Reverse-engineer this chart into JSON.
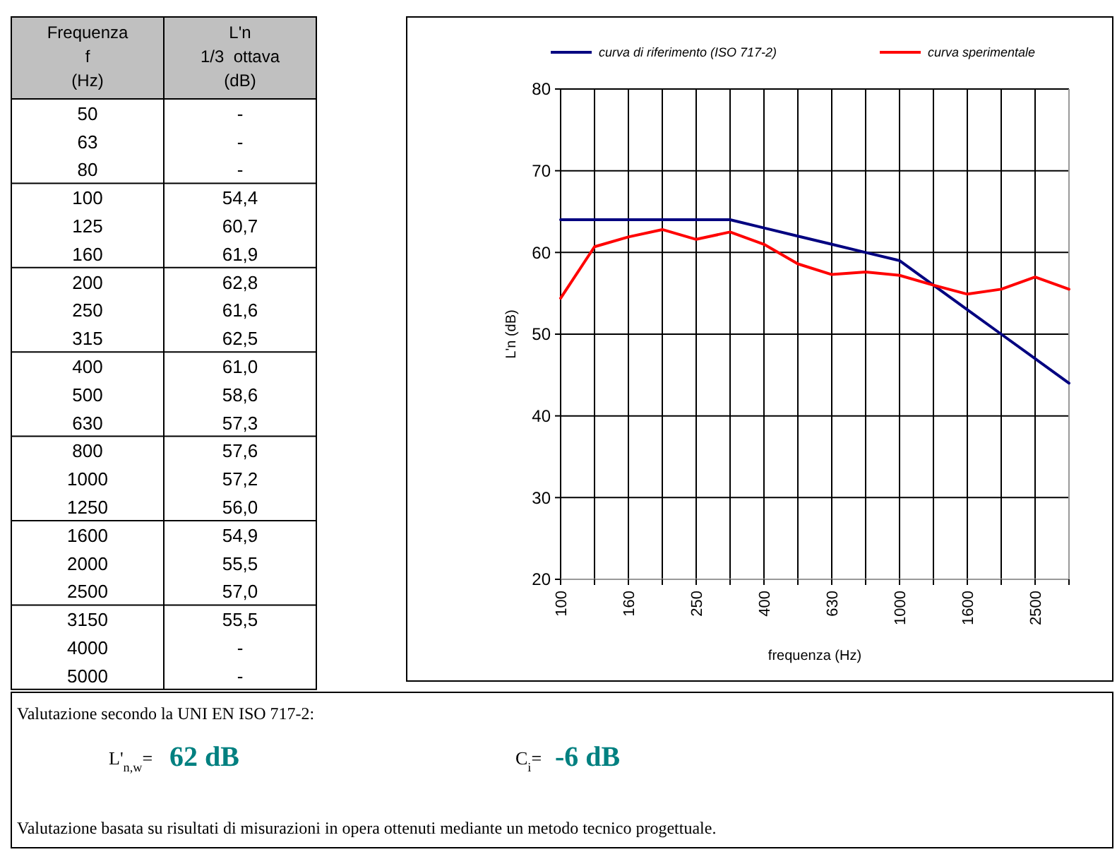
{
  "chart_data": [
    {
      "type": "other",
      "annotations": [
        "Frequenza",
        "f",
        "(Hz)",
        "L'n",
        "1/3  ottava",
        "(dB)"
      ],
      "categories": [
        "50",
        "63",
        "80",
        "100",
        "125",
        "160",
        "200",
        "250",
        "315",
        "400",
        "500",
        "630",
        "800",
        "1000",
        "1250",
        "1600",
        "2000",
        "2500",
        "3150",
        "4000",
        "5000"
      ],
      "value_labels": [
        "-",
        "-",
        "-",
        "54,4",
        "60,7",
        "61,9",
        "62,8",
        "61,6",
        "62,5",
        "61,0",
        "58,6",
        "57,3",
        "57,6",
        "57,2",
        "56,0",
        "54,9",
        "55,5",
        "57,0",
        "55,5",
        "-",
        "-"
      ]
    },
    {
      "type": "line",
      "categories": [
        "100",
        null,
        "160",
        null,
        "250",
        null,
        "400",
        null,
        "630",
        null,
        "1000",
        null,
        "1600",
        null,
        "2500",
        null
      ],
      "series": [
        {
          "name": "curva di riferimento (ISO 717-2)",
          "color": "#000080",
          "values": [
            64,
            64,
            64,
            64,
            64,
            64,
            63,
            62,
            61,
            60,
            59,
            56,
            53,
            50,
            47,
            44
          ]
        },
        {
          "name": "curva sperimentale",
          "color": "#ff0000",
          "values": [
            54.4,
            60.7,
            61.9,
            62.8,
            61.6,
            62.5,
            61.0,
            58.6,
            57.3,
            57.6,
            57.2,
            56.0,
            54.9,
            55.5,
            57.0,
            55.5
          ]
        }
      ],
      "xlabel": "frequenza (Hz)",
      "ylabel": "L'n (dB)",
      "ylim": [
        20,
        80
      ],
      "yticks": [
        20,
        30,
        40,
        50,
        60,
        70,
        80
      ],
      "grid": true,
      "legend": "top"
    },
    {
      "type": "other",
      "annotations": [
        "Valutazione secondo la UNI EN ISO 717-2:",
        "L'$_{n,w}$= ",
        "62 dB",
        "C$_{i}$= ",
        "-6 dB",
        "Valutazione basata su risultati di misurazioni in opera ottenuti mediante un metodo tecnico progettuale."
      ]
    }
  ]
}
